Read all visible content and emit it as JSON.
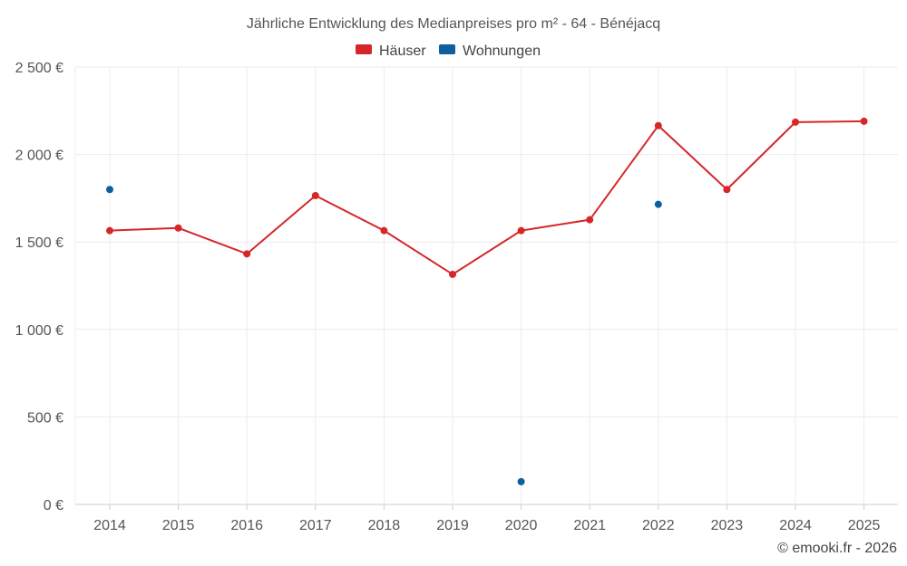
{
  "chart_data": {
    "type": "line",
    "title": "Jährliche Entwicklung des Medianpreises pro m² - 64 - Bénéjacq",
    "categories": [
      "2014",
      "2015",
      "2016",
      "2017",
      "2018",
      "2019",
      "2020",
      "2021",
      "2022",
      "2023",
      "2024",
      "2025"
    ],
    "series": [
      {
        "name": "Häuser",
        "color": "#d62728",
        "values": [
          1565,
          1580,
          1432,
          1765,
          1565,
          1315,
          1565,
          1627,
          2165,
          1800,
          2185,
          2190
        ],
        "style": "line-with-markers"
      },
      {
        "name": "Wohnungen",
        "color": "#0e5f9e",
        "values": [
          1800,
          null,
          null,
          null,
          null,
          null,
          130,
          null,
          1715,
          null,
          null,
          null
        ],
        "style": "markers-only"
      }
    ],
    "ylim": [
      0,
      2500
    ],
    "yticks": [
      0,
      500,
      1000,
      1500,
      2000,
      2500
    ],
    "ytick_labels": [
      "0 €",
      "500 €",
      "1 000 €",
      "1 500 €",
      "2 000 €",
      "2 500 €"
    ],
    "xlabel": "",
    "ylabel": "",
    "grid": true,
    "legend_position": "top-center"
  },
  "credit": "© emooki.fr - 2026"
}
